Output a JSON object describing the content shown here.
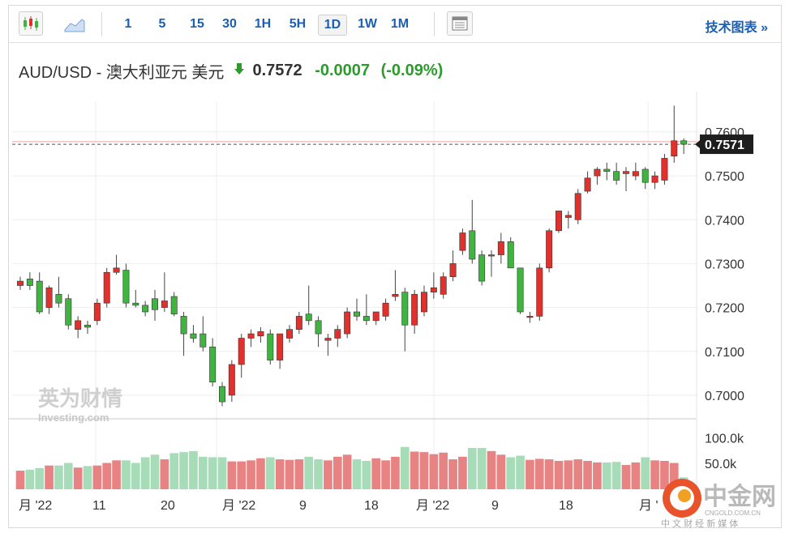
{
  "toolbar": {
    "intervals": [
      "1",
      "5",
      "15",
      "30",
      "1H",
      "5H",
      "1D",
      "1W",
      "1M"
    ],
    "active_interval": "1D",
    "tech_chart_label": "技术图表 »",
    "icons": {
      "candle": "candlestick-icon",
      "area": "area-chart-icon",
      "table": "data-table-icon"
    }
  },
  "header": {
    "symbol_title": "AUD/USD - 澳大利亚元 美元",
    "last_price": "0.7572",
    "change": "-0.0007",
    "change_pct": "(-0.09%)",
    "direction": "down"
  },
  "watermarks": {
    "brand_cn": "英为财情",
    "brand_en": "Investing.com",
    "cngold_logo_text": "中金网",
    "cngold_url": "CNGOLD.COM.CN",
    "cngold_slogan": "中 文 财 经 新 媒 体"
  },
  "colors": {
    "up": "#e0312c",
    "down": "#3fb540",
    "vol_up": "#e88383",
    "vol_down": "#a6dcb7",
    "accent": "#1a5fb4"
  },
  "chart_data": {
    "type": "candlestick",
    "price_axis": {
      "min": 0.695,
      "max": 0.767,
      "ticks": [
        "0.7600",
        "0.7500",
        "0.7400",
        "0.7300",
        "0.7200",
        "0.7100",
        "0.7000"
      ]
    },
    "current_label": "0.7571",
    "volume_axis": {
      "ticks": [
        "100.0k",
        "50.0k"
      ]
    },
    "x_labels": [
      "月 '22",
      "11",
      "20",
      "月 '22",
      "9",
      "18",
      "月 '22",
      "9",
      "18",
      "月 '"
    ],
    "candles": [
      [
        0.725,
        0.727,
        0.724,
        0.726
      ],
      [
        0.7265,
        0.728,
        0.724,
        0.725
      ],
      [
        0.726,
        0.728,
        0.7185,
        0.719
      ],
      [
        0.72,
        0.725,
        0.7185,
        0.7245
      ],
      [
        0.723,
        0.727,
        0.72,
        0.721
      ],
      [
        0.722,
        0.723,
        0.715,
        0.716
      ],
      [
        0.715,
        0.718,
        0.713,
        0.717
      ],
      [
        0.716,
        0.717,
        0.714,
        0.7155
      ],
      [
        0.717,
        0.722,
        0.716,
        0.721
      ],
      [
        0.721,
        0.729,
        0.72,
        0.728
      ],
      [
        0.728,
        0.732,
        0.7275,
        0.729
      ],
      [
        0.7285,
        0.73,
        0.72,
        0.721
      ],
      [
        0.721,
        0.724,
        0.72,
        0.7205
      ],
      [
        0.7205,
        0.7215,
        0.718,
        0.719
      ],
      [
        0.722,
        0.724,
        0.717,
        0.7195
      ],
      [
        0.72,
        0.728,
        0.719,
        0.7215
      ],
      [
        0.7225,
        0.7235,
        0.718,
        0.7185
      ],
      [
        0.718,
        0.719,
        0.709,
        0.714
      ],
      [
        0.714,
        0.716,
        0.712,
        0.713
      ],
      [
        0.714,
        0.718,
        0.71,
        0.711
      ],
      [
        0.711,
        0.713,
        0.702,
        0.703
      ],
      [
        0.702,
        0.703,
        0.6975,
        0.6985
      ],
      [
        0.7,
        0.708,
        0.6985,
        0.707
      ],
      [
        0.707,
        0.714,
        0.704,
        0.713
      ],
      [
        0.713,
        0.715,
        0.711,
        0.714
      ],
      [
        0.7135,
        0.7155,
        0.712,
        0.7145
      ],
      [
        0.714,
        0.715,
        0.707,
        0.708
      ],
      [
        0.708,
        0.714,
        0.706,
        0.714
      ],
      [
        0.713,
        0.716,
        0.712,
        0.715
      ],
      [
        0.715,
        0.719,
        0.714,
        0.718
      ],
      [
        0.7185,
        0.725,
        0.716,
        0.717
      ],
      [
        0.717,
        0.718,
        0.711,
        0.714
      ],
      [
        0.7125,
        0.714,
        0.709,
        0.713
      ],
      [
        0.713,
        0.716,
        0.711,
        0.715
      ],
      [
        0.714,
        0.72,
        0.713,
        0.719
      ],
      [
        0.719,
        0.722,
        0.717,
        0.718
      ],
      [
        0.718,
        0.723,
        0.716,
        0.717
      ],
      [
        0.717,
        0.719,
        0.716,
        0.719
      ],
      [
        0.718,
        0.722,
        0.717,
        0.721
      ],
      [
        0.7225,
        0.7285,
        0.7215,
        0.723
      ],
      [
        0.7235,
        0.7245,
        0.71,
        0.716
      ],
      [
        0.716,
        0.724,
        0.714,
        0.723
      ],
      [
        0.719,
        0.725,
        0.718,
        0.7235
      ],
      [
        0.7235,
        0.728,
        0.722,
        0.7245
      ],
      [
        0.723,
        0.728,
        0.722,
        0.727
      ],
      [
        0.727,
        0.733,
        0.726,
        0.73
      ],
      [
        0.733,
        0.738,
        0.732,
        0.737
      ],
      [
        0.7375,
        0.7445,
        0.73,
        0.731
      ],
      [
        0.732,
        0.733,
        0.725,
        0.726
      ],
      [
        0.732,
        0.733,
        0.727,
        0.732
      ],
      [
        0.732,
        0.737,
        0.73,
        0.735
      ],
      [
        0.735,
        0.736,
        0.729,
        0.729
      ],
      [
        0.729,
        0.729,
        0.7185,
        0.719
      ],
      [
        0.718,
        0.719,
        0.7165,
        0.718
      ],
      [
        0.718,
        0.73,
        0.717,
        0.729
      ],
      [
        0.729,
        0.738,
        0.728,
        0.7375
      ],
      [
        0.7375,
        0.742,
        0.737,
        0.742
      ],
      [
        0.7405,
        0.742,
        0.738,
        0.741
      ],
      [
        0.74,
        0.747,
        0.739,
        0.746
      ],
      [
        0.7465,
        0.751,
        0.746,
        0.7495
      ],
      [
        0.75,
        0.752,
        0.748,
        0.7515
      ],
      [
        0.7515,
        0.753,
        0.749,
        0.751
      ],
      [
        0.751,
        0.753,
        0.748,
        0.749
      ],
      [
        0.7505,
        0.752,
        0.7465,
        0.751
      ],
      [
        0.75,
        0.753,
        0.749,
        0.751
      ],
      [
        0.7515,
        0.752,
        0.747,
        0.7485
      ],
      [
        0.7485,
        0.751,
        0.747,
        0.75
      ],
      [
        0.749,
        0.755,
        0.748,
        0.754
      ],
      [
        0.7545,
        0.766,
        0.753,
        0.758
      ],
      [
        0.758,
        0.7585,
        0.755,
        0.7572
      ]
    ],
    "volumes": [
      36,
      38,
      41,
      46,
      46,
      51,
      42,
      45,
      46,
      51,
      56,
      56,
      51,
      62,
      67,
      58,
      70,
      72,
      74,
      63,
      62,
      62,
      54,
      54,
      56,
      60,
      62,
      58,
      57,
      58,
      63,
      58,
      56,
      63,
      67,
      58,
      55,
      60,
      56,
      63,
      82,
      73,
      72,
      68,
      71,
      58,
      63,
      80,
      80,
      74,
      67,
      62,
      65,
      57,
      59,
      58,
      55,
      56,
      58,
      55,
      52,
      52,
      53,
      47,
      52,
      62,
      56,
      55,
      51,
      23
    ]
  }
}
